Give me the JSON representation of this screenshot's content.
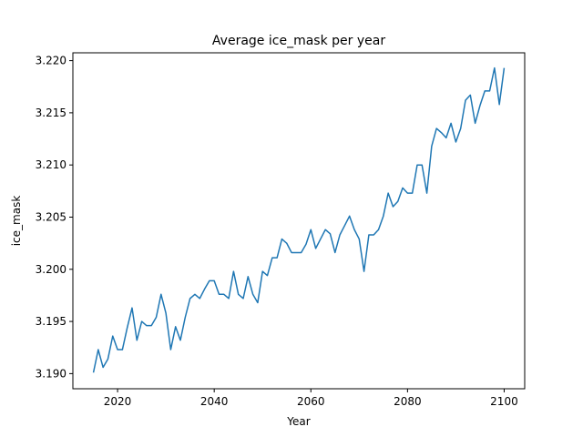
{
  "chart_data": {
    "type": "line",
    "title": "Average ice_mask per year",
    "xlabel": "Year",
    "ylabel": "ice_mask",
    "xlim": [
      2010.75,
      2104.25
    ],
    "ylim": [
      3.18855,
      3.22075
    ],
    "xticks": [
      2020,
      2040,
      2060,
      2080,
      2100
    ],
    "yticks": [
      3.19,
      3.195,
      3.2,
      3.205,
      3.21,
      3.215,
      3.22
    ],
    "ytick_labels": [
      "3.190",
      "3.195",
      "3.200",
      "3.205",
      "3.210",
      "3.215",
      "3.220"
    ],
    "grid": false,
    "color": "#1f77b4",
    "series": [
      {
        "x": [
          2015,
          2016,
          2017,
          2018,
          2019,
          2020,
          2021,
          2022,
          2023,
          2024,
          2025,
          2026,
          2027,
          2028,
          2029,
          2030,
          2031,
          2032,
          2033,
          2034,
          2035,
          2036,
          2037,
          2038,
          2039,
          2040,
          2041,
          2042,
          2043,
          2044,
          2045,
          2046,
          2047,
          2048,
          2049,
          2050,
          2051,
          2052,
          2053,
          2054,
          2055,
          2056,
          2057,
          2058,
          2059,
          2060,
          2061,
          2062,
          2063,
          2064,
          2065,
          2066,
          2067,
          2068,
          2069,
          2070,
          2071,
          2072,
          2073,
          2074,
          2075,
          2076,
          2077,
          2078,
          2079,
          2080,
          2081,
          2082,
          2083,
          2084,
          2085,
          2086,
          2087,
          2088,
          2089,
          2090,
          2091,
          2092,
          2093,
          2094,
          2095,
          2096,
          2097,
          2098,
          2099,
          2100
        ],
        "values": [
          3.1901,
          3.1923,
          3.1906,
          3.1914,
          3.1936,
          3.1923,
          3.1923,
          3.1944,
          3.1963,
          3.1932,
          3.195,
          3.1946,
          3.1946,
          3.1954,
          3.1976,
          3.1958,
          3.1923,
          3.1945,
          3.1932,
          3.1954,
          3.1972,
          3.1976,
          3.1972,
          3.1981,
          3.1989,
          3.1989,
          3.1976,
          3.1976,
          3.1972,
          3.1998,
          3.1976,
          3.1972,
          3.1993,
          3.1976,
          3.1968,
          3.1998,
          3.1994,
          3.2011,
          3.2011,
          3.2029,
          3.2025,
          3.2016,
          3.2016,
          3.2016,
          3.2024,
          3.2038,
          3.202,
          3.2029,
          3.2038,
          3.2034,
          3.2016,
          3.2033,
          3.2042,
          3.2051,
          3.2038,
          3.2029,
          3.1998,
          3.2033,
          3.2033,
          3.2038,
          3.2051,
          3.2073,
          3.206,
          3.2065,
          3.2078,
          3.2073,
          3.2073,
          3.21,
          3.21,
          3.2073,
          3.2118,
          3.2135,
          3.2131,
          3.2126,
          3.214,
          3.2122,
          3.2135,
          3.2162,
          3.2167,
          3.214,
          3.2157,
          3.2171,
          3.2171,
          3.2193,
          3.2158,
          3.2193
        ]
      }
    ]
  }
}
